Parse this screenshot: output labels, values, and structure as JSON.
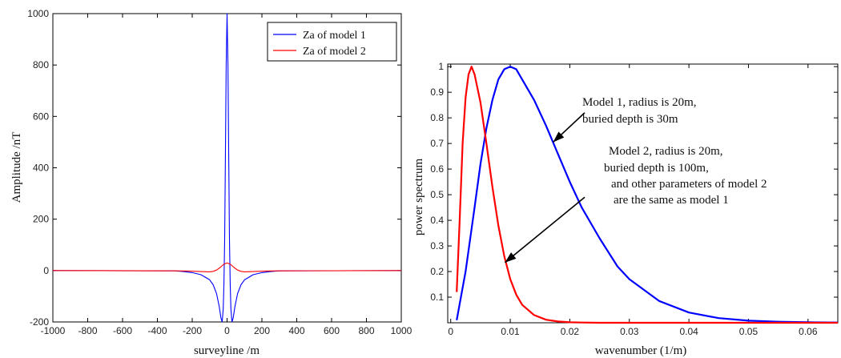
{
  "chart_data": [
    {
      "type": "line",
      "xlabel": "surveyline /m",
      "ylabel": "Amplitude /nT",
      "xlim": [
        -1000,
        1000
      ],
      "ylim": [
        -200,
        1000
      ],
      "xticks": [
        "-1000",
        "-800",
        "-600",
        "-400",
        "-200",
        "0",
        "200",
        "400",
        "600",
        "800",
        "1000"
      ],
      "yticks": [
        "-200",
        "0",
        "200",
        "400",
        "600",
        "800",
        "1000"
      ],
      "grid": false,
      "legend_position": "top-right",
      "series": [
        {
          "name": "Za of model 1",
          "color": "#0000ff",
          "x": [
            -1000,
            -300,
            -250,
            -200,
            -150,
            -100,
            -80,
            -60,
            -45,
            -35,
            -28,
            -22,
            -18,
            -14,
            -10,
            -5,
            0,
            5,
            10,
            14,
            18,
            22,
            28,
            35,
            45,
            60,
            80,
            100,
            150,
            200,
            250,
            300,
            1000
          ],
          "y": [
            0,
            -1,
            -4,
            -8,
            -16,
            -36,
            -55,
            -90,
            -140,
            -185,
            -200,
            -150,
            -50,
            120,
            400,
            800,
            1000,
            800,
            400,
            120,
            -50,
            -150,
            -200,
            -185,
            -140,
            -90,
            -55,
            -36,
            -16,
            -8,
            -4,
            -1,
            0
          ]
        },
        {
          "name": "Za of model 2",
          "color": "#ff0000",
          "x": [
            -1000,
            -300,
            -250,
            -200,
            -150,
            -100,
            -80,
            -60,
            -40,
            -20,
            0,
            20,
            40,
            60,
            80,
            100,
            150,
            200,
            250,
            300,
            1000
          ],
          "y": [
            0,
            -1,
            -1.5,
            -2.5,
            -4,
            -5,
            -3,
            2,
            12,
            24,
            30,
            24,
            12,
            2,
            -3,
            -5,
            -4,
            -2.5,
            -1.5,
            -1,
            0
          ]
        }
      ]
    },
    {
      "type": "line",
      "xlabel": "wavenumber (1/m)",
      "ylabel": "power spectrum",
      "xlim": [
        -0.0005,
        0.065
      ],
      "ylim": [
        0,
        1.01
      ],
      "xticks": [
        "0",
        "0.01",
        "0.02",
        "0.03",
        "0.04",
        "0.05",
        "0.06"
      ],
      "yticks": [
        "0.1",
        "0.2",
        "0.3",
        "0.4",
        "0.5",
        "0.6",
        "0.7",
        "0.8",
        "0.9",
        "1"
      ],
      "grid": false,
      "series": [
        {
          "color": "#0000ff",
          "x": [
            0.001,
            0.0025,
            0.004,
            0.005,
            0.006,
            0.007,
            0.008,
            0.009,
            0.01,
            0.011,
            0.012,
            0.014,
            0.016,
            0.018,
            0.02,
            0.022,
            0.025,
            0.028,
            0.03,
            0.035,
            0.04,
            0.045,
            0.05,
            0.055,
            0.06,
            0.065
          ],
          "y": [
            0.01,
            0.2,
            0.45,
            0.62,
            0.76,
            0.87,
            0.95,
            0.99,
            1.0,
            0.99,
            0.95,
            0.87,
            0.77,
            0.66,
            0.55,
            0.45,
            0.33,
            0.22,
            0.17,
            0.085,
            0.04,
            0.018,
            0.008,
            0.004,
            0.002,
            0.001
          ]
        },
        {
          "color": "#ff0000",
          "x": [
            0.001,
            0.0015,
            0.002,
            0.0025,
            0.003,
            0.0035,
            0.004,
            0.005,
            0.006,
            0.007,
            0.008,
            0.009,
            0.01,
            0.011,
            0.012,
            0.014,
            0.016,
            0.018,
            0.02,
            0.022,
            0.025,
            0.03,
            0.04,
            0.05,
            0.065
          ],
          "y": [
            0.12,
            0.4,
            0.7,
            0.88,
            0.97,
            1.0,
            0.97,
            0.86,
            0.7,
            0.53,
            0.38,
            0.26,
            0.17,
            0.11,
            0.07,
            0.03,
            0.012,
            0.005,
            0.002,
            0.001,
            0.0,
            0.0,
            0.0,
            0.0,
            0.0
          ]
        }
      ],
      "annotations": [
        {
          "lines": [
            "Model 1, radius is 20m,",
            "buried depth is 30m"
          ],
          "arrow_from": [
            0.0225,
            0.82
          ],
          "arrow_to": [
            0.0172,
            0.705
          ]
        },
        {
          "lines": [
            "Model 2, radius is 20m,",
            "buried depth is 100m,",
            "and other parameters of model 2",
            "are the same as model 1"
          ],
          "arrow_from": [
            0.0225,
            0.49
          ],
          "arrow_to": [
            0.0091,
            0.235
          ]
        }
      ]
    }
  ]
}
